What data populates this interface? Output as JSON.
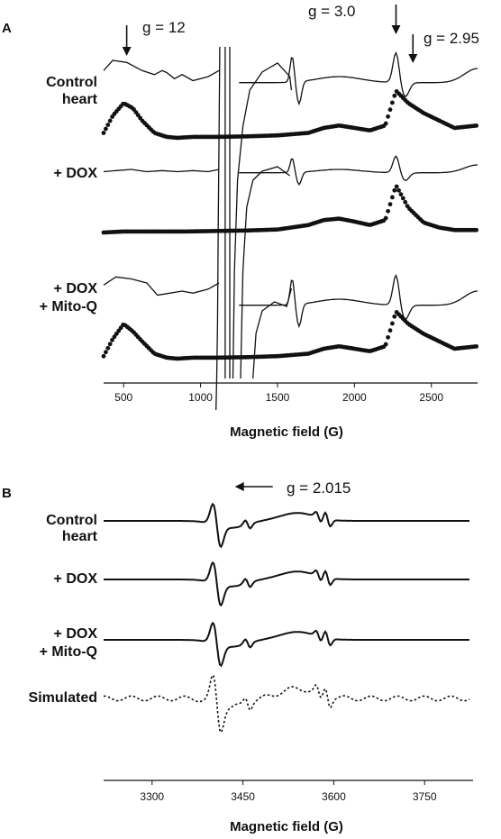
{
  "chart_data": [
    {
      "panel": "A",
      "type": "line",
      "xlabel": "Magnetic field (G)",
      "xlim": [
        370,
        2800
      ],
      "xticks": [
        500,
        1000,
        1500,
        2000,
        2500
      ],
      "annotations": [
        "g = 12",
        "g = 3.0",
        "g = 2.95"
      ],
      "annotation_fields": [
        520,
        2270,
        2380
      ],
      "rows": [
        {
          "label_lines": [
            "Control",
            "heart"
          ],
          "solid": {
            "x": [
              370,
              430,
              520,
              620,
              700,
              750,
              780,
              830,
              880,
              950,
              1050,
              1120
            ],
            "y": [
              0.55,
              0.8,
              0.75,
              0.55,
              0.45,
              0.55,
              0.5,
              0.35,
              0.45,
              0.3,
              0.4,
              0.55
            ]
          },
          "dotted": {
            "x": [
              370,
              430,
              500,
              560,
              620,
              700,
              780,
              850,
              950,
              1100,
              1300,
              1500,
              1700,
              1800,
              1900,
              2000,
              2100,
              2200,
              2270,
              2350,
              2450,
              2550,
              2650,
              2800
            ],
            "y": [
              0.1,
              0.45,
              0.7,
              0.6,
              0.35,
              0.1,
              0.02,
              0.0,
              0.02,
              0.02,
              0.03,
              0.05,
              0.1,
              0.2,
              0.25,
              0.2,
              0.15,
              0.25,
              0.95,
              0.7,
              0.5,
              0.35,
              0.2,
              0.25
            ]
          }
        },
        {
          "label_lines": [
            "+ DOX"
          ],
          "solid": {
            "x": [
              370,
              450,
              550,
              650,
              750,
              850,
              950,
              1050,
              1120
            ],
            "y": [
              0.3,
              0.35,
              0.4,
              0.3,
              0.35,
              0.3,
              0.35,
              0.3,
              0.4
            ]
          },
          "dotted": {
            "x": [
              370,
              500,
              700,
              900,
              1100,
              1300,
              1500,
              1700,
              1800,
              1900,
              2000,
              2100,
              2200,
              2270,
              2350,
              2450,
              2550,
              2650,
              2800
            ],
            "y": [
              0.0,
              0.02,
              0.02,
              0.02,
              0.03,
              0.04,
              0.06,
              0.15,
              0.25,
              0.28,
              0.22,
              0.15,
              0.25,
              0.95,
              0.5,
              0.2,
              0.1,
              0.05,
              0.05
            ]
          }
        },
        {
          "label_lines": [
            "+ DOX",
            "+ Mito-Q"
          ],
          "solid": {
            "x": [
              370,
              450,
              550,
              650,
              720,
              800,
              880,
              950,
              1050,
              1120
            ],
            "y": [
              0.75,
              0.95,
              0.9,
              0.8,
              0.5,
              0.55,
              0.6,
              0.55,
              0.65,
              0.8
            ]
          },
          "dotted": {
            "x": [
              370,
              430,
              500,
              560,
              620,
              700,
              780,
              850,
              950,
              1100,
              1300,
              1500,
              1700,
              1800,
              1900,
              2000,
              2100,
              2200,
              2270,
              2350,
              2450,
              2550,
              2650,
              2800
            ],
            "y": [
              0.05,
              0.4,
              0.7,
              0.55,
              0.35,
              0.1,
              0.02,
              0.0,
              0.02,
              0.02,
              0.03,
              0.05,
              0.1,
              0.2,
              0.25,
              0.2,
              0.15,
              0.25,
              0.95,
              0.7,
              0.5,
              0.35,
              0.2,
              0.25
            ]
          }
        }
      ]
    },
    {
      "panel": "B",
      "type": "line",
      "xlabel": "Magnetic field (G)",
      "xlim": [
        3220,
        3830
      ],
      "xticks": [
        3300,
        3450,
        3600,
        3750
      ],
      "annotations": [
        "g = 2.015"
      ],
      "annotation_fields": [
        3407
      ],
      "rows": [
        {
          "label_lines": [
            "Control",
            "heart"
          ],
          "style": "solid"
        },
        {
          "label_lines": [
            "+ DOX"
          ],
          "style": "solid"
        },
        {
          "label_lines": [
            "+ DOX",
            "+ Mito-Q"
          ],
          "style": "solid"
        },
        {
          "label_lines": [
            "Simulated"
          ],
          "style": "dotted"
        }
      ]
    }
  ],
  "panel_a": {
    "letter": "A"
  },
  "panel_b": {
    "letter": "B"
  }
}
